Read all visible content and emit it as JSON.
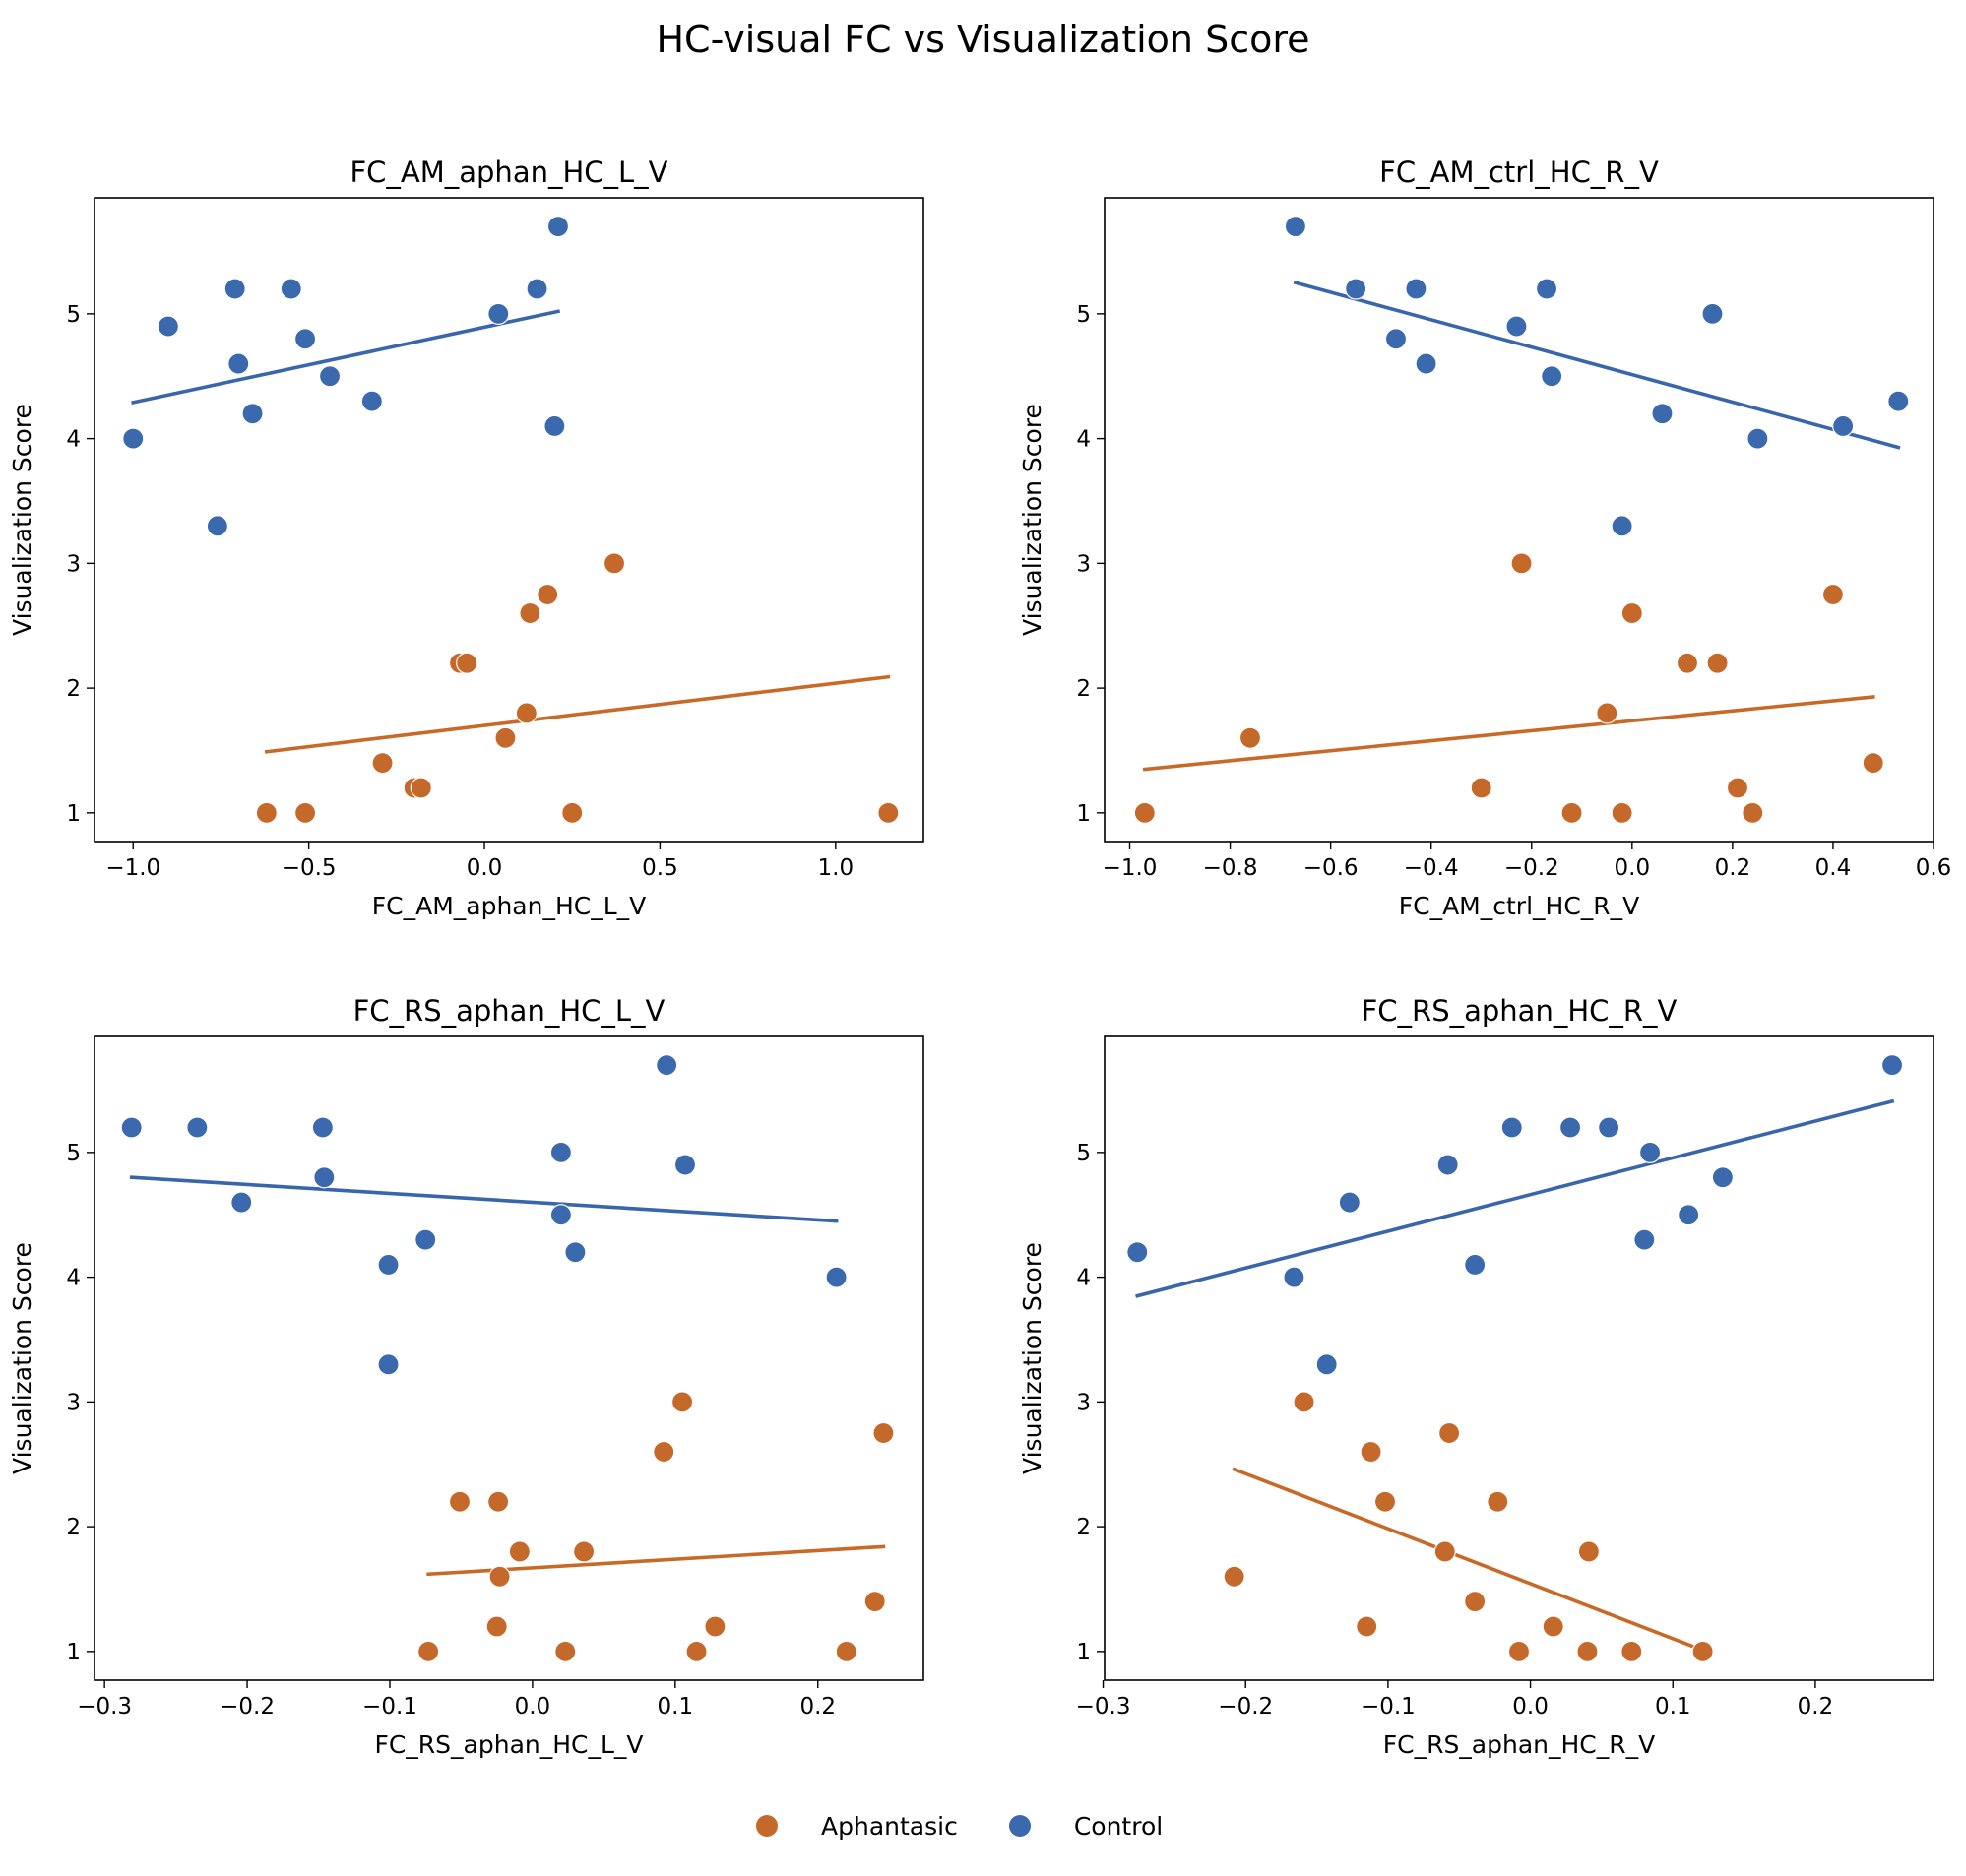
{
  "title": "HC-visual FC vs Visualization Score",
  "colors": {
    "aphantasic": "#c5692a",
    "control": "#3a69ad",
    "aphantasic_line": "#c76a28",
    "control_line": "#3966ab"
  },
  "legend": {
    "aphantasic_label": "Aphantasic",
    "control_label": "Control"
  },
  "chart_data": [
    {
      "type": "scatter",
      "title": "FC_AM_aphan_HC_L_V",
      "xlabel": "FC_AM_aphan_HC_L_V",
      "ylabel": "Visualization Score",
      "xlim": [
        -1.11,
        1.25
      ],
      "ylim": [
        0.77,
        5.93
      ],
      "xticks": [
        -1.0,
        -0.5,
        0.0,
        0.5,
        1.0
      ],
      "xtick_labels": [
        "−1.0",
        "−0.5",
        "0.0",
        "0.5",
        "1.0"
      ],
      "yticks": [
        1,
        2,
        3,
        4,
        5
      ],
      "ytick_labels": [
        "1",
        "2",
        "3",
        "4",
        "5"
      ],
      "series": [
        {
          "name": "Aphantasic",
          "color": "#c5692a",
          "x": [
            -0.62,
            -0.51,
            -0.29,
            -0.2,
            -0.18,
            -0.07,
            -0.05,
            0.06,
            0.12,
            0.13,
            0.18,
            0.25,
            0.37,
            1.15
          ],
          "y": [
            1.0,
            1.0,
            1.4,
            1.2,
            1.2,
            2.2,
            2.2,
            1.6,
            1.8,
            2.6,
            2.75,
            1.0,
            3.0,
            1.0
          ],
          "fit": {
            "x": [
              -0.62,
              1.15
            ],
            "y": [
              1.49,
              2.09
            ]
          }
        },
        {
          "name": "Control",
          "color": "#3a69ad",
          "x": [
            -1.0,
            -0.9,
            -0.76,
            -0.71,
            -0.7,
            -0.66,
            -0.55,
            -0.51,
            -0.44,
            -0.32,
            0.04,
            0.15,
            0.2,
            0.21
          ],
          "y": [
            4.0,
            4.9,
            3.3,
            5.2,
            4.6,
            4.2,
            5.2,
            4.8,
            4.5,
            4.3,
            5.0,
            5.2,
            4.1,
            5.7
          ],
          "fit": {
            "x": [
              -1.0,
              0.21
            ],
            "y": [
              4.29,
              5.02
            ]
          }
        }
      ]
    },
    {
      "type": "scatter",
      "title": "FC_AM_ctrl_HC_R_V",
      "xlabel": "FC_AM_ctrl_HC_R_V",
      "ylabel": "Visualization Score",
      "xlim": [
        -1.05,
        0.6
      ],
      "ylim": [
        0.77,
        5.93
      ],
      "xticks": [
        -1.0,
        -0.8,
        -0.6,
        -0.4,
        -0.2,
        0.0,
        0.2,
        0.4,
        0.6
      ],
      "xtick_labels": [
        "−1.0",
        "−0.8",
        "−0.6",
        "−0.4",
        "−0.2",
        "0.0",
        "0.2",
        "0.4",
        "0.6"
      ],
      "yticks": [
        1,
        2,
        3,
        4,
        5
      ],
      "ytick_labels": [
        "1",
        "2",
        "3",
        "4",
        "5"
      ],
      "series": [
        {
          "name": "Aphantasic",
          "color": "#c5692a",
          "x": [
            -0.97,
            -0.76,
            -0.3,
            -0.22,
            -0.12,
            -0.05,
            -0.02,
            0.0,
            0.11,
            0.17,
            0.21,
            0.24,
            0.4,
            0.48
          ],
          "y": [
            1.0,
            1.6,
            1.2,
            3.0,
            1.0,
            1.8,
            1.0,
            2.6,
            2.2,
            2.2,
            1.2,
            1.0,
            2.75,
            1.4
          ],
          "fit": {
            "x": [
              -0.97,
              0.48
            ],
            "y": [
              1.35,
              1.93
            ]
          }
        },
        {
          "name": "Control",
          "color": "#3a69ad",
          "x": [
            -0.67,
            -0.55,
            -0.47,
            -0.43,
            -0.41,
            -0.23,
            -0.17,
            -0.16,
            -0.02,
            0.06,
            0.16,
            0.25,
            0.42,
            0.53
          ],
          "y": [
            5.7,
            5.2,
            4.8,
            5.2,
            4.6,
            4.9,
            5.2,
            4.5,
            3.3,
            4.2,
            5.0,
            4.0,
            4.1,
            4.3
          ],
          "fit": {
            "x": [
              -0.67,
              0.53
            ],
            "y": [
              5.25,
              3.93
            ]
          }
        }
      ]
    },
    {
      "type": "scatter",
      "title": "FC_RS_aphan_HC_L_V",
      "xlabel": "FC_RS_aphan_HC_L_V",
      "ylabel": "Visualization Score",
      "xlim": [
        -0.307,
        0.274
      ],
      "ylim": [
        0.77,
        5.93
      ],
      "xticks": [
        -0.3,
        -0.2,
        -0.1,
        0.0,
        0.1,
        0.2
      ],
      "xtick_labels": [
        "−0.3",
        "−0.2",
        "−0.1",
        "0.0",
        "0.1",
        "0.2"
      ],
      "yticks": [
        1,
        2,
        3,
        4,
        5
      ],
      "ytick_labels": [
        "1",
        "2",
        "3",
        "4",
        "5"
      ],
      "series": [
        {
          "name": "Aphantasic",
          "color": "#c5692a",
          "x": [
            -0.073,
            -0.051,
            -0.025,
            -0.024,
            -0.023,
            -0.009,
            0.023,
            0.036,
            0.092,
            0.105,
            0.115,
            0.128,
            0.22,
            0.24,
            0.246
          ],
          "y": [
            1.0,
            2.2,
            1.2,
            2.2,
            1.6,
            1.8,
            1.0,
            1.8,
            2.6,
            3.0,
            1.0,
            1.2,
            1.0,
            1.4,
            2.75
          ],
          "fit": {
            "x": [
              -0.073,
              0.246
            ],
            "y": [
              1.62,
              1.84
            ]
          }
        },
        {
          "name": "Control",
          "color": "#3a69ad",
          "x": [
            -0.281,
            -0.235,
            -0.204,
            -0.147,
            -0.146,
            -0.101,
            -0.101,
            -0.075,
            0.02,
            0.02,
            0.03,
            0.094,
            0.107,
            0.213
          ],
          "y": [
            5.2,
            5.2,
            4.6,
            5.2,
            4.8,
            4.1,
            3.3,
            4.3,
            5.0,
            4.5,
            4.2,
            5.7,
            4.9,
            4.0
          ],
          "fit": {
            "x": [
              -0.281,
              0.213
            ],
            "y": [
              4.8,
              4.45
            ]
          }
        }
      ]
    },
    {
      "type": "scatter",
      "title": "FC_RS_aphan_HC_R_V",
      "xlabel": "FC_RS_aphan_HC_R_V",
      "ylabel": "Visualization Score",
      "xlim": [
        -0.299,
        0.283
      ],
      "ylim": [
        0.77,
        5.93
      ],
      "xticks": [
        -0.3,
        -0.2,
        -0.1,
        0.0,
        0.1,
        0.2
      ],
      "xtick_labels": [
        "−0.3",
        "−0.2",
        "−0.1",
        "0.0",
        "0.1",
        "0.2"
      ],
      "yticks": [
        1,
        2,
        3,
        4,
        5
      ],
      "ytick_labels": [
        "1",
        "2",
        "3",
        "4",
        "5"
      ],
      "series": [
        {
          "name": "Aphantasic",
          "color": "#c5692a",
          "x": [
            -0.208,
            -0.159,
            -0.115,
            -0.112,
            -0.102,
            -0.06,
            -0.057,
            -0.039,
            -0.023,
            -0.008,
            0.016,
            0.041,
            0.04,
            0.071,
            0.121
          ],
          "y": [
            1.6,
            3.0,
            1.2,
            2.6,
            2.2,
            1.8,
            2.75,
            1.4,
            2.2,
            1.0,
            1.2,
            1.8,
            1.0,
            1.0,
            1.0
          ],
          "fit": {
            "x": [
              -0.208,
              0.121
            ],
            "y": [
              2.46,
              1.01
            ]
          }
        },
        {
          "name": "Control",
          "color": "#3a69ad",
          "x": [
            -0.276,
            -0.166,
            -0.143,
            -0.127,
            -0.058,
            -0.039,
            -0.013,
            0.028,
            0.055,
            0.08,
            0.084,
            0.111,
            0.135,
            0.254
          ],
          "y": [
            4.2,
            4.0,
            3.3,
            4.6,
            4.9,
            4.1,
            5.2,
            5.2,
            5.2,
            4.3,
            5.0,
            4.5,
            4.8,
            5.7
          ],
          "fit": {
            "x": [
              -0.276,
              0.254
            ],
            "y": [
              3.85,
              5.41
            ]
          }
        }
      ]
    }
  ]
}
